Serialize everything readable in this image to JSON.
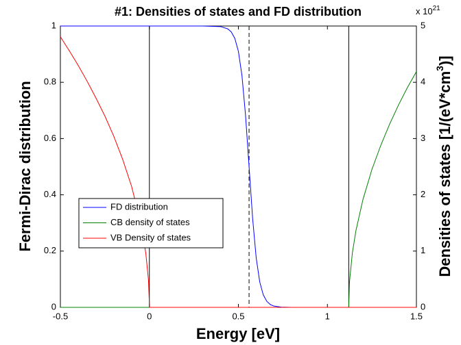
{
  "chart_data": {
    "type": "line",
    "title": "#1: Densities of states and FD distribution",
    "xlabel": "Energy [eV]",
    "ylabel": "Fermi-Dirac distribution",
    "ylabel_color": "#0000ff",
    "y2label": [
      "Densities of states [1/(eV*cm",
      "3",
      ")]"
    ],
    "y2_multiplier": [
      "x 10",
      "21"
    ],
    "xlim": [
      -0.5,
      1.5
    ],
    "xticks": [
      -0.5,
      0,
      0.5,
      1,
      1.5
    ],
    "ylim": [
      0,
      1
    ],
    "yticks": [
      0,
      0.2,
      0.4,
      0.6,
      0.8,
      1
    ],
    "y2lim": [
      0,
      5
    ],
    "y2ticks": [
      0,
      1,
      2,
      3,
      4,
      5
    ],
    "legend": "center left",
    "vlines": [
      {
        "x": 0,
        "dashed": false
      },
      {
        "x": 1.12,
        "dashed": false
      },
      {
        "x": 0.56,
        "dashed": true
      }
    ],
    "series": [
      {
        "name": "FD distribution",
        "color": "#0000ff",
        "x": [
          -0.5,
          0.3,
          0.4,
          0.44,
          0.46,
          0.48,
          0.5,
          0.52,
          0.54,
          0.56,
          0.58,
          0.6,
          0.62,
          0.64,
          0.66,
          0.68,
          0.7,
          0.74,
          0.8,
          1.5
        ],
        "values": [
          1,
          1,
          0.998,
          0.99,
          0.979,
          0.956,
          0.91,
          0.824,
          0.684,
          0.5,
          0.316,
          0.176,
          0.09,
          0.044,
          0.021,
          0.0097,
          0.0045,
          0.001,
          0,
          0
        ]
      },
      {
        "name": "CB density of states",
        "color": "#008000",
        "axis": "y2",
        "x": [
          -0.5,
          1.12,
          1.1235,
          1.125,
          1.14,
          1.16,
          1.2,
          1.25,
          1.3,
          1.35,
          1.4,
          1.45,
          1.5
        ],
        "values": [
          0,
          0,
          0.4,
          0.48,
          0.96,
          1.36,
          1.92,
          2.45,
          2.88,
          3.26,
          3.6,
          3.91,
          4.19
        ]
      },
      {
        "name": "VB Density of states",
        "color": "#ff0000",
        "axis": "y2",
        "x": [
          -0.5,
          -0.45,
          -0.4,
          -0.35,
          -0.3,
          -0.25,
          -0.2,
          -0.15,
          -0.1,
          -0.05,
          -0.02,
          -0.005,
          -0.0001,
          0.0001,
          1.5
        ],
        "values": [
          4.81,
          4.56,
          4.3,
          4.02,
          3.72,
          3.4,
          3.04,
          2.63,
          2.15,
          1.52,
          0.96,
          0.48,
          0.07,
          0,
          0
        ]
      }
    ]
  }
}
